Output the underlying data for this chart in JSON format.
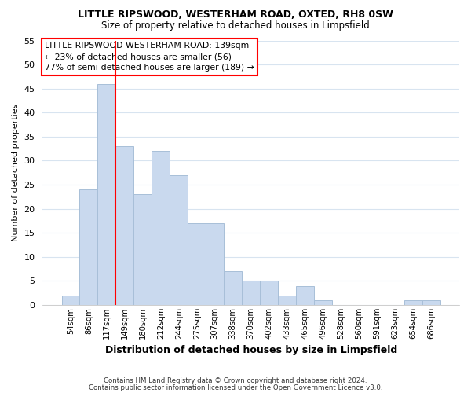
{
  "title1": "LITTLE RIPSWOOD, WESTERHAM ROAD, OXTED, RH8 0SW",
  "title2": "Size of property relative to detached houses in Limpsfield",
  "xlabel": "Distribution of detached houses by size in Limpsfield",
  "ylabel": "Number of detached properties",
  "bar_labels": [
    "54sqm",
    "86sqm",
    "117sqm",
    "149sqm",
    "180sqm",
    "212sqm",
    "244sqm",
    "275sqm",
    "307sqm",
    "338sqm",
    "370sqm",
    "402sqm",
    "433sqm",
    "465sqm",
    "496sqm",
    "528sqm",
    "560sqm",
    "591sqm",
    "623sqm",
    "654sqm",
    "686sqm"
  ],
  "bar_values": [
    2,
    24,
    46,
    33,
    23,
    32,
    27,
    17,
    17,
    7,
    5,
    5,
    2,
    4,
    1,
    0,
    0,
    0,
    0,
    1,
    1
  ],
  "bar_color": "#c9d9ee",
  "bar_edge_color": "#a8bfd8",
  "vline_color": "red",
  "ylim": [
    0,
    55
  ],
  "yticks": [
    0,
    5,
    10,
    15,
    20,
    25,
    30,
    35,
    40,
    45,
    50,
    55
  ],
  "annotation_title": "LITTLE RIPSWOOD WESTERHAM ROAD: 139sqm",
  "annotation_line1": "← 23% of detached houses are smaller (56)",
  "annotation_line2": "77% of semi-detached houses are larger (189) →",
  "footnote1": "Contains HM Land Registry data © Crown copyright and database right 2024.",
  "footnote2": "Contains public sector information licensed under the Open Government Licence v3.0.",
  "bg_color": "#ffffff",
  "grid_color": "#d8e4f0"
}
